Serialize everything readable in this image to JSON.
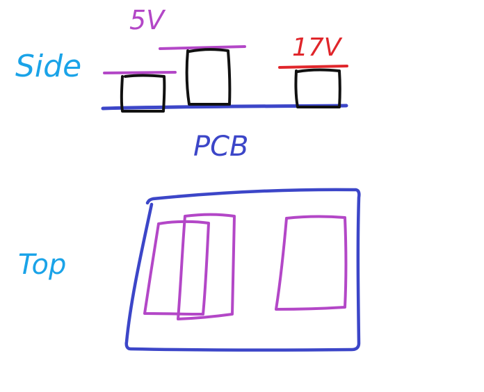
{
  "sketch": {
    "side_label": "Side",
    "top_label": "Top",
    "pcb_label": "PCB",
    "voltage_5v_label": "5V",
    "voltage_17v_label": "17V"
  },
  "colors": {
    "label_blue": "#1aa3e8",
    "pcb_blue": "#3c46c8",
    "component_black": "#111111",
    "purple": "#b347c7",
    "red": "#e0262b",
    "background": "#ffffff"
  }
}
